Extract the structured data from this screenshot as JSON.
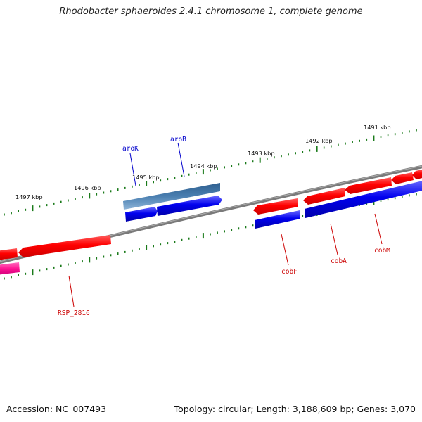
{
  "title": "Rhodobacter sphaeroides 2.4.1 chromosome 1, complete genome",
  "accession_text": "Accession: NC_007493",
  "summary_text": "Topology: circular; Length: 3,188,609 bp; Genes: 3,070",
  "ticks": [
    {
      "label": "1497 kbp"
    },
    {
      "label": "1496 kbp"
    },
    {
      "label": "1495 kbp"
    },
    {
      "label": "1494 kbp"
    },
    {
      "label": "1493 kbp"
    },
    {
      "label": "1492 kbp"
    },
    {
      "label": "1491 kbp"
    }
  ],
  "gene_labels": [
    {
      "name": "aroK",
      "color": "#0000cc"
    },
    {
      "name": "aroB",
      "color": "#0000cc"
    },
    {
      "name": "cobF",
      "color": "#cc0000"
    },
    {
      "name": "cobA",
      "color": "#cc0000"
    },
    {
      "name": "cobM",
      "color": "#cc0000"
    },
    {
      "name": "RSP_2816",
      "color": "#cc0000"
    }
  ],
  "colors": {
    "backbone": "#7a7a7a",
    "tick": "#1a7a1a",
    "forward_gene": "#ff0000",
    "reverse_gene": "#0000ee",
    "rna_gene": "#4a7fb0",
    "other_gene": "#ff1493"
  }
}
